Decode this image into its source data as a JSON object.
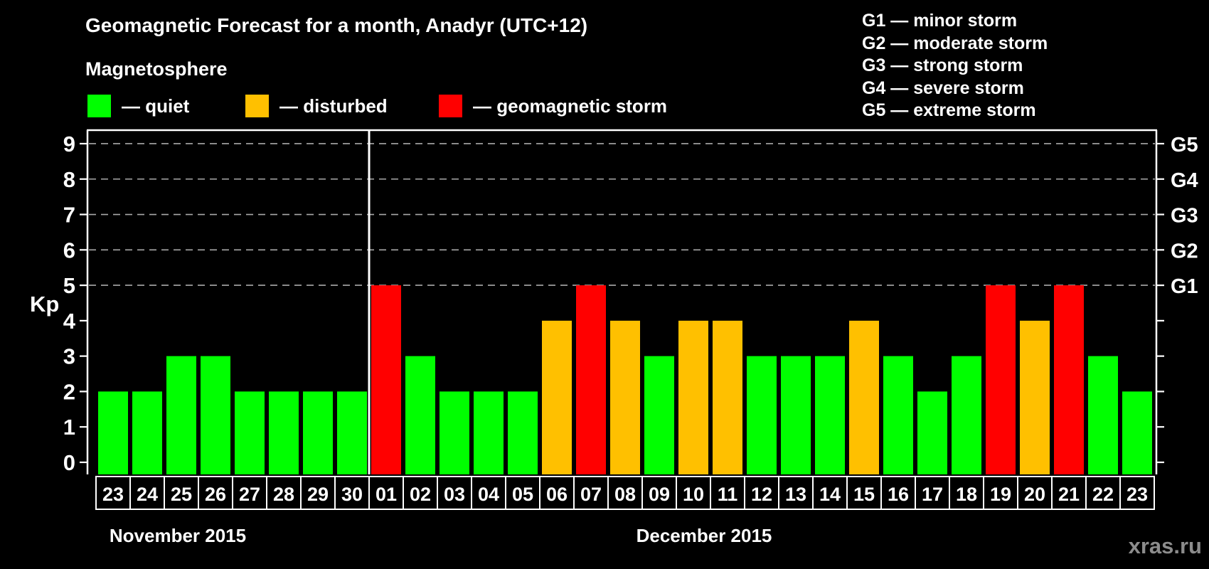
{
  "title": "Geomagnetic Forecast for a month, Anadyr (UTC+12)",
  "legend": {
    "heading": "Magnetosphere",
    "items": [
      {
        "key": "quiet",
        "label": "— quiet",
        "color": "#00ff00"
      },
      {
        "key": "disturbed",
        "label": "— disturbed",
        "color": "#ffc000"
      },
      {
        "key": "storm",
        "label": "— geomagnetic storm",
        "color": "#ff0000"
      }
    ]
  },
  "storm_scale_legend": [
    "G1 — minor storm",
    "G2 — moderate storm",
    "G3 — strong storm",
    "G4 — severe storm",
    "G5 — extreme storm"
  ],
  "watermark": "xras.ru",
  "chart_data": {
    "type": "bar",
    "ylabel": "Kp",
    "ylim": [
      0,
      9.4
    ],
    "yticks": [
      0,
      1,
      2,
      3,
      4,
      5,
      6,
      7,
      8,
      9
    ],
    "grid_levels": [
      5,
      6,
      7,
      8,
      9
    ],
    "grid_style": "dashed",
    "right_axis": [
      {
        "level": 5,
        "label": "G1"
      },
      {
        "level": 6,
        "label": "G2"
      },
      {
        "level": 7,
        "label": "G3"
      },
      {
        "level": 8,
        "label": "G4"
      },
      {
        "level": 9,
        "label": "G5"
      }
    ],
    "status_colors": {
      "quiet": "#00ff00",
      "disturbed": "#ffc000",
      "storm": "#ff0000"
    },
    "axis_color": "#ffffff",
    "grid_color": "#a9a9a9",
    "months": [
      {
        "label": "November 2015",
        "days": [
          {
            "day": "23",
            "kp": 2,
            "status": "quiet"
          },
          {
            "day": "24",
            "kp": 2,
            "status": "quiet"
          },
          {
            "day": "25",
            "kp": 3,
            "status": "quiet"
          },
          {
            "day": "26",
            "kp": 3,
            "status": "quiet"
          },
          {
            "day": "27",
            "kp": 2,
            "status": "quiet"
          },
          {
            "day": "28",
            "kp": 2,
            "status": "quiet"
          },
          {
            "day": "29",
            "kp": 2,
            "status": "quiet"
          },
          {
            "day": "30",
            "kp": 2,
            "status": "quiet"
          }
        ]
      },
      {
        "label": "December 2015",
        "days": [
          {
            "day": "01",
            "kp": 5,
            "status": "storm"
          },
          {
            "day": "02",
            "kp": 3,
            "status": "quiet"
          },
          {
            "day": "03",
            "kp": 2,
            "status": "quiet"
          },
          {
            "day": "04",
            "kp": 2,
            "status": "quiet"
          },
          {
            "day": "05",
            "kp": 2,
            "status": "quiet"
          },
          {
            "day": "06",
            "kp": 4,
            "status": "disturbed"
          },
          {
            "day": "07",
            "kp": 5,
            "status": "storm"
          },
          {
            "day": "08",
            "kp": 4,
            "status": "disturbed"
          },
          {
            "day": "09",
            "kp": 3,
            "status": "quiet"
          },
          {
            "day": "10",
            "kp": 4,
            "status": "disturbed"
          },
          {
            "day": "11",
            "kp": 4,
            "status": "disturbed"
          },
          {
            "day": "12",
            "kp": 3,
            "status": "quiet"
          },
          {
            "day": "13",
            "kp": 3,
            "status": "quiet"
          },
          {
            "day": "14",
            "kp": 3,
            "status": "quiet"
          },
          {
            "day": "15",
            "kp": 4,
            "status": "disturbed"
          },
          {
            "day": "16",
            "kp": 3,
            "status": "quiet"
          },
          {
            "day": "17",
            "kp": 2,
            "status": "quiet"
          },
          {
            "day": "18",
            "kp": 3,
            "status": "quiet"
          },
          {
            "day": "19",
            "kp": 5,
            "status": "storm"
          },
          {
            "day": "20",
            "kp": 4,
            "status": "disturbed"
          },
          {
            "day": "21",
            "kp": 5,
            "status": "storm"
          },
          {
            "day": "22",
            "kp": 3,
            "status": "quiet"
          },
          {
            "day": "23",
            "kp": 2,
            "status": "quiet"
          }
        ]
      }
    ]
  }
}
